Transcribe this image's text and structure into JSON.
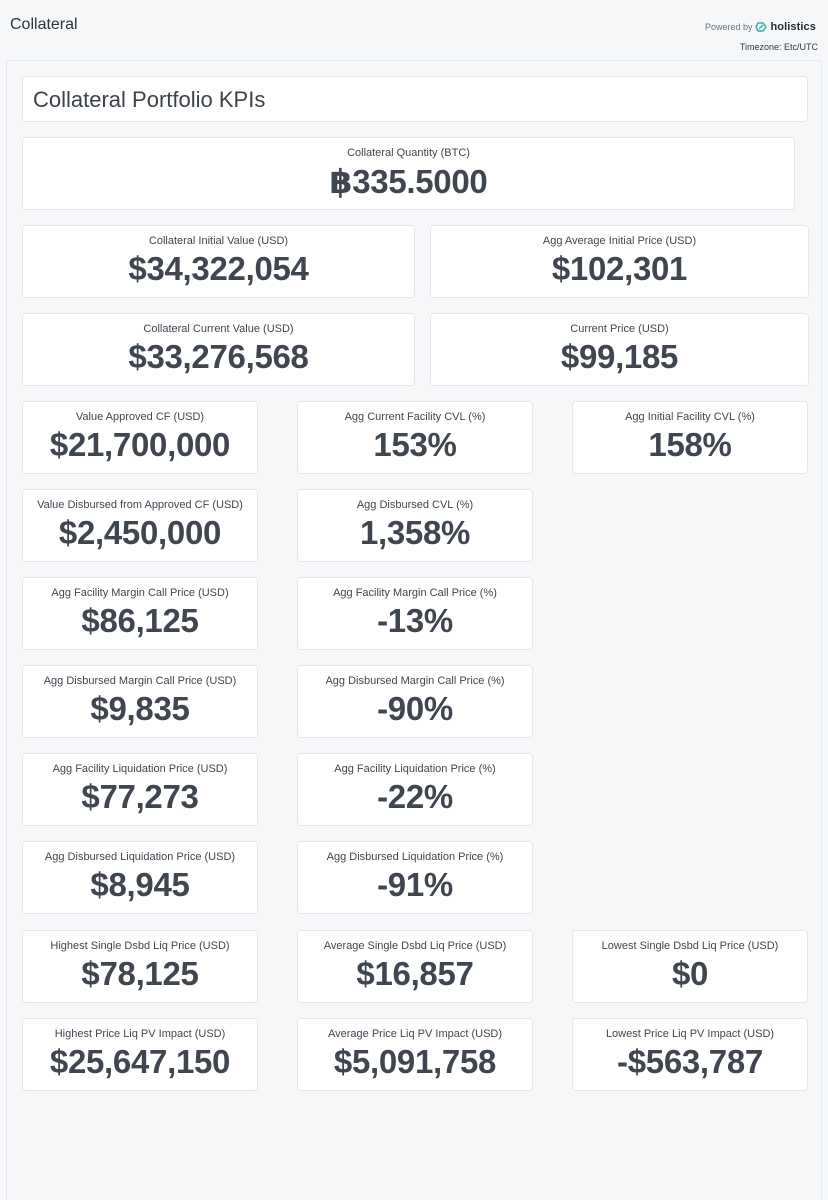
{
  "header": {
    "title": "Collateral",
    "powered_by": "Powered by",
    "brand": "holistics",
    "timezone": "Timezone: Etc/UTC"
  },
  "section": {
    "title": "Collateral Portfolio KPIs"
  },
  "kpis": {
    "collateral_quantity": {
      "label": "Collateral Quantity (BTC)",
      "value": "฿335.5000"
    },
    "collateral_initial_value": {
      "label": "Collateral Initial Value (USD)",
      "value": "$34,322,054"
    },
    "agg_average_initial_price": {
      "label": "Agg Average Initial Price (USD)",
      "value": "$102,301"
    },
    "collateral_current_value": {
      "label": "Collateral Current Value (USD)",
      "value": "$33,276,568"
    },
    "current_price": {
      "label": "Current Price (USD)",
      "value": "$99,185"
    },
    "value_approved_cf": {
      "label": "Value Approved CF (USD)",
      "value": "$21,700,000"
    },
    "agg_current_facility_cvl": {
      "label": "Agg Current Facility CVL (%)",
      "value": "153%"
    },
    "agg_initial_facility_cvl": {
      "label": "Agg Initial Facility CVL (%)",
      "value": "158%"
    },
    "value_disbursed": {
      "label": "Value Disbursed from Approved CF (USD)",
      "value": "$2,450,000"
    },
    "agg_disbursed_cvl": {
      "label": "Agg Disbursed CVL (%)",
      "value": "1,358%"
    },
    "agg_facility_margin_call_usd": {
      "label": "Agg Facility Margin Call Price (USD)",
      "value": "$86,125"
    },
    "agg_facility_margin_call_pct": {
      "label": "Agg Facility Margin Call Price (%)",
      "value": "-13%"
    },
    "agg_disbursed_margin_call_usd": {
      "label": "Agg Disbursed Margin Call Price (USD)",
      "value": "$9,835"
    },
    "agg_disbursed_margin_call_pct": {
      "label": "Agg Disbursed Margin Call Price (%)",
      "value": "-90%"
    },
    "agg_facility_liquidation_usd": {
      "label": "Agg Facility Liquidation Price (USD)",
      "value": "$77,273"
    },
    "agg_facility_liquidation_pct": {
      "label": "Agg Facility Liquidation Price (%)",
      "value": "-22%"
    },
    "agg_disbursed_liquidation_usd": {
      "label": "Agg Disbursed Liquidation Price (USD)",
      "value": "$8,945"
    },
    "agg_disbursed_liquidation_pct": {
      "label": "Agg Disbursed Liquidation Price (%)",
      "value": "-91%"
    },
    "highest_single_dsbd_liq": {
      "label": "Highest Single Dsbd Liq Price (USD)",
      "value": "$78,125"
    },
    "average_single_dsbd_liq": {
      "label": "Average Single Dsbd Liq Price (USD)",
      "value": "$16,857"
    },
    "lowest_single_dsbd_liq": {
      "label": "Lowest Single Dsbd Liq Price (USD)",
      "value": "$0"
    },
    "highest_price_liq_pv": {
      "label": "Highest Price Liq PV Impact (USD)",
      "value": "$25,647,150"
    },
    "average_price_liq_pv": {
      "label": "Average Price Liq PV Impact (USD)",
      "value": "$5,091,758"
    },
    "lowest_price_liq_pv": {
      "label": "Lowest Price Liq PV Impact (USD)",
      "value": "-$563,787"
    }
  }
}
